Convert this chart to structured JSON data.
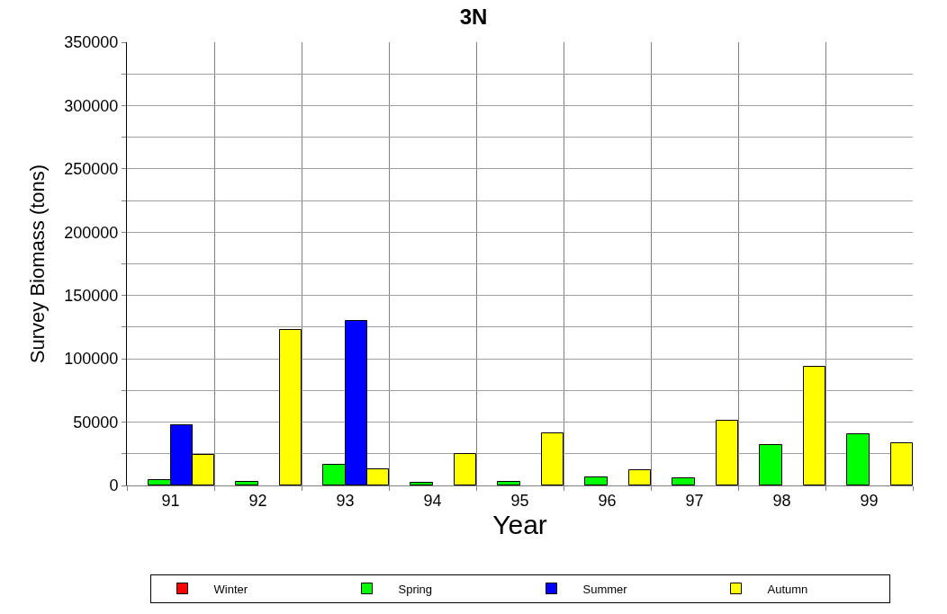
{
  "chart_data": {
    "type": "bar",
    "title": "3N",
    "xlabel": "Year",
    "ylabel": "Survey Biomass (tons)",
    "categories": [
      "91",
      "92",
      "93",
      "94",
      "95",
      "96",
      "97",
      "98",
      "99"
    ],
    "series": [
      {
        "name": "Winter",
        "color": "#ff0000",
        "values": [
          null,
          null,
          null,
          null,
          null,
          null,
          null,
          null,
          null
        ]
      },
      {
        "name": "Spring",
        "color": "#00ff00",
        "values": [
          4000,
          3000,
          16000,
          2000,
          3000,
          6500,
          6000,
          32000,
          40500
        ]
      },
      {
        "name": "Summer",
        "color": "#0000ff",
        "values": [
          47500,
          null,
          130000,
          null,
          null,
          null,
          null,
          null,
          null
        ]
      },
      {
        "name": "Autumn",
        "color": "#ffff00",
        "values": [
          24000,
          123000,
          13000,
          25000,
          41000,
          12000,
          51000,
          94000,
          33500
        ]
      }
    ],
    "ylim": [
      0,
      350000
    ],
    "yticks": [
      0,
      {
        "value": 25000,
        "label": null
      },
      50000,
      {
        "value": 75000,
        "label": null
      },
      100000,
      {
        "value": 125000,
        "label": null
      },
      150000,
      {
        "value": 175000,
        "label": null
      },
      200000,
      {
        "value": 225000,
        "label": null
      },
      250000,
      {
        "value": 275000,
        "label": null
      },
      300000,
      {
        "value": 325000,
        "label": null
      },
      350000
    ],
    "grid": true,
    "legend": "bottom"
  }
}
